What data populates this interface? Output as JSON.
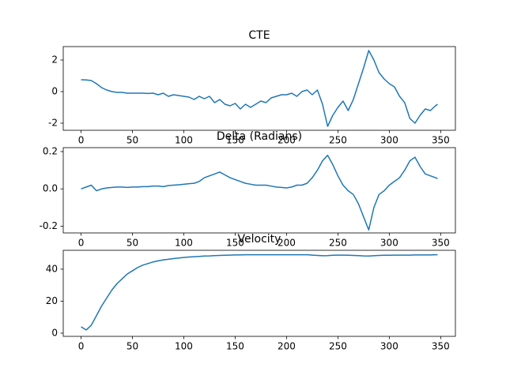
{
  "chart_data": [
    {
      "type": "line",
      "title": "CTE",
      "x": [
        0,
        5,
        10,
        15,
        20,
        25,
        30,
        35,
        40,
        45,
        50,
        55,
        60,
        65,
        70,
        75,
        80,
        85,
        90,
        95,
        100,
        105,
        110,
        115,
        120,
        125,
        130,
        135,
        140,
        145,
        150,
        155,
        160,
        165,
        170,
        175,
        180,
        185,
        190,
        195,
        200,
        205,
        210,
        215,
        220,
        225,
        230,
        235,
        240,
        245,
        250,
        255,
        260,
        265,
        270,
        275,
        280,
        285,
        290,
        295,
        300,
        305,
        310,
        315,
        320,
        325,
        330,
        335,
        340,
        345,
        347
      ],
      "values": [
        0.75,
        0.74,
        0.7,
        0.5,
        0.25,
        0.1,
        0.0,
        -0.05,
        -0.05,
        -0.1,
        -0.1,
        -0.1,
        -0.1,
        -0.12,
        -0.1,
        -0.2,
        -0.1,
        -0.3,
        -0.2,
        -0.25,
        -0.3,
        -0.35,
        -0.5,
        -0.3,
        -0.45,
        -0.3,
        -0.7,
        -0.5,
        -0.8,
        -0.9,
        -0.75,
        -1.1,
        -0.8,
        -1.0,
        -0.8,
        -0.6,
        -0.7,
        -0.4,
        -0.3,
        -0.2,
        -0.2,
        -0.1,
        -0.3,
        0.0,
        0.1,
        -0.2,
        0.1,
        -0.8,
        -2.2,
        -1.5,
        -1.0,
        -0.6,
        -1.2,
        -0.5,
        0.5,
        1.5,
        2.6,
        2.0,
        1.2,
        0.8,
        0.5,
        0.3,
        -0.3,
        -0.7,
        -1.7,
        -2.0,
        -1.5,
        -1.1,
        -1.2,
        -0.9,
        -0.8
      ],
      "color": "#1f77b4",
      "xlim": [
        -17.35,
        364.35
      ],
      "xticks": [
        0,
        50,
        100,
        150,
        200,
        250,
        300,
        350
      ],
      "ylim": [
        -2.45,
        2.85
      ],
      "yticks": [
        -2,
        0,
        2
      ]
    },
    {
      "type": "line",
      "title": "Delta (Radians)",
      "x": [
        0,
        5,
        10,
        15,
        20,
        25,
        30,
        35,
        40,
        45,
        50,
        55,
        60,
        65,
        70,
        75,
        80,
        85,
        90,
        95,
        100,
        105,
        110,
        115,
        120,
        125,
        130,
        135,
        140,
        145,
        150,
        155,
        160,
        165,
        170,
        175,
        180,
        185,
        190,
        195,
        200,
        205,
        210,
        215,
        220,
        225,
        230,
        235,
        240,
        245,
        250,
        255,
        260,
        265,
        270,
        275,
        280,
        285,
        290,
        295,
        300,
        305,
        310,
        315,
        320,
        325,
        330,
        335,
        340,
        345,
        347
      ],
      "values": [
        0.0,
        0.01,
        0.02,
        -0.01,
        0.0,
        0.005,
        0.008,
        0.01,
        0.01,
        0.008,
        0.01,
        0.01,
        0.012,
        0.012,
        0.015,
        0.015,
        0.012,
        0.018,
        0.02,
        0.022,
        0.025,
        0.028,
        0.03,
        0.04,
        0.06,
        0.07,
        0.08,
        0.09,
        0.075,
        0.06,
        0.05,
        0.04,
        0.03,
        0.025,
        0.02,
        0.02,
        0.02,
        0.015,
        0.01,
        0.008,
        0.005,
        0.01,
        0.02,
        0.02,
        0.03,
        0.06,
        0.1,
        0.15,
        0.18,
        0.13,
        0.07,
        0.02,
        -0.01,
        -0.03,
        -0.08,
        -0.15,
        -0.22,
        -0.1,
        -0.03,
        -0.01,
        0.02,
        0.04,
        0.06,
        0.1,
        0.15,
        0.17,
        0.12,
        0.08,
        0.07,
        0.06,
        0.055
      ],
      "color": "#1f77b4",
      "xlim": [
        -17.35,
        364.35
      ],
      "xticks": [
        0,
        50,
        100,
        150,
        200,
        250,
        300,
        350
      ],
      "ylim": [
        -0.236,
        0.221
      ],
      "yticks": [
        -0.2,
        {
          "value": 0,
          "label": "0.0"
        },
        0.2
      ]
    },
    {
      "type": "line",
      "title": "Velocity",
      "x": [
        0,
        5,
        10,
        15,
        20,
        25,
        30,
        35,
        40,
        45,
        50,
        55,
        60,
        65,
        70,
        75,
        80,
        85,
        90,
        95,
        100,
        105,
        110,
        115,
        120,
        125,
        130,
        135,
        140,
        145,
        150,
        155,
        160,
        165,
        170,
        175,
        180,
        185,
        190,
        195,
        200,
        205,
        210,
        215,
        220,
        225,
        230,
        235,
        240,
        245,
        250,
        255,
        260,
        265,
        270,
        275,
        280,
        285,
        290,
        295,
        300,
        305,
        310,
        315,
        320,
        325,
        330,
        335,
        340,
        345,
        347
      ],
      "values": [
        4,
        2,
        5,
        11,
        17,
        22,
        27,
        31,
        34,
        37,
        39,
        41,
        42.5,
        43.5,
        44.5,
        45.2,
        45.8,
        46.2,
        46.6,
        47,
        47.3,
        47.6,
        47.8,
        48,
        48.2,
        48.3,
        48.5,
        48.6,
        48.7,
        48.8,
        48.9,
        48.9,
        49,
        49,
        49,
        49,
        49,
        49,
        49,
        49,
        49,
        49,
        49,
        49,
        49,
        48.8,
        48.6,
        48.4,
        48.5,
        48.7,
        48.8,
        48.8,
        48.7,
        48.6,
        48.5,
        48.3,
        48.2,
        48.4,
        48.6,
        48.7,
        48.7,
        48.8,
        48.8,
        48.8,
        48.8,
        48.9,
        48.9,
        48.9,
        48.9,
        49,
        49
      ],
      "color": "#1f77b4",
      "xlim": [
        -17.35,
        364.35
      ],
      "xticks": [
        0,
        50,
        100,
        150,
        200,
        250,
        300,
        350
      ],
      "ylim": [
        -2.0,
        51.8
      ],
      "yticks": [
        0,
        20,
        40
      ]
    }
  ]
}
